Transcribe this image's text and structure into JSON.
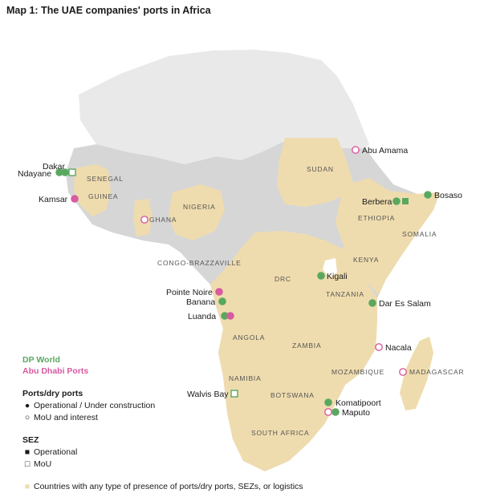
{
  "title": "Map 1: The UAE companies' ports in Africa",
  "colors": {
    "presence": "#efdcae",
    "land": "#d6d6d6",
    "north": "#e9e9e9",
    "dp_world": "#5aa860",
    "abu_dhabi": "#d85aa0"
  },
  "countries": {
    "senegal": "SENEGAL",
    "guinea": "GUINEA",
    "ghana": "GHANA",
    "nigeria": "NIGERIA",
    "sudan": "SUDAN",
    "ethiopia": "ETHIOPIA",
    "somalia": "SOMALIA",
    "kenya": "KENYA",
    "congo": "CONGO-BRAZZAVILLE",
    "drc": "DRC",
    "tanzania": "TANZANIA",
    "angola": "ANGOLA",
    "zambia": "ZAMBIA",
    "mozambique": "MOZAMBIQUE",
    "madagascar": "MADAGASCAR",
    "namibia": "NAMIBIA",
    "botswana": "BOTSWANA",
    "south_africa": "SOUTH AFRICA"
  },
  "ports": {
    "dakar": "Dakar",
    "ndayane": "Ndayane",
    "kamsar": "Kamsar",
    "ghana": "GHANA",
    "abu_amama": "Abu Amama",
    "berbera": "Berbera",
    "bosaso": "Bosaso",
    "kigali": "Kigali",
    "dar_es_salam": "Dar Es Salam",
    "pointe_noire": "Pointe Noire",
    "banana": "Banana",
    "luanda": "Luanda",
    "nacala": "Nacala",
    "walvis_bay": "Walvis Bay",
    "komatipoort": "Komatipoort",
    "maputo": "Maputo"
  },
  "legend": {
    "operators": [
      "DP World",
      "Abu Dhabi Ports"
    ],
    "ports_title": "Ports/dry ports",
    "port_operational": "Operational / Under construction",
    "port_mou": "MoU and interest",
    "sez_title": "SEZ",
    "sez_operational": "Operational",
    "sez_mou": "MoU",
    "presence_note": "Countries with any type of presence of ports/dry ports, SEZs, or logistics"
  }
}
